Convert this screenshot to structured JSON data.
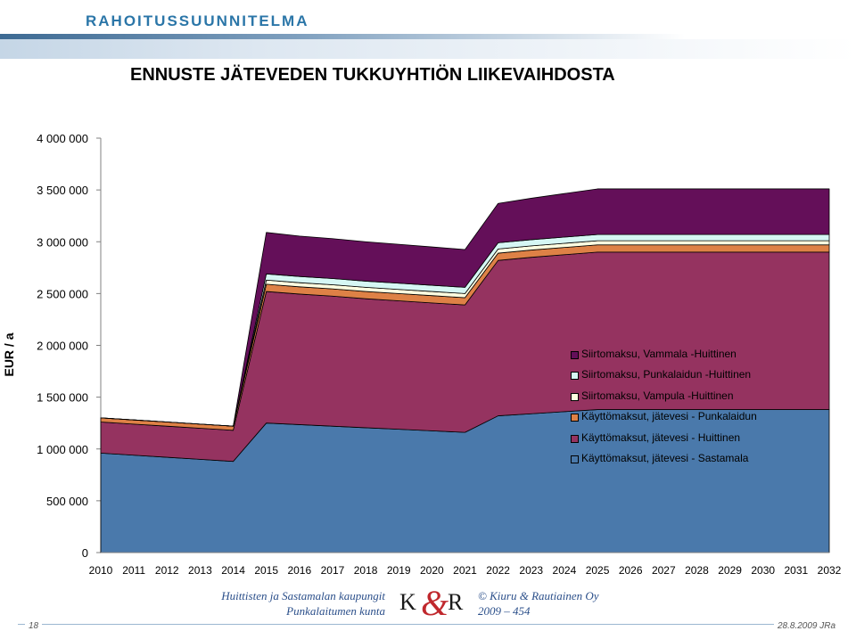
{
  "header": {
    "title": "RAHOITUSSUUNNITELMA"
  },
  "chart_data": {
    "type": "area",
    "stacked": true,
    "title": "ENNUSTE JÄTEVEDEN TUKKUYHTIÖN LIIKEVAIHDOSTA",
    "ylabel": "EUR / a",
    "xlabel": "",
    "ylim": [
      0,
      4000000
    ],
    "yticks": [
      0,
      500000,
      1000000,
      1500000,
      2000000,
      2500000,
      3000000,
      3500000,
      4000000
    ],
    "ytick_labels": [
      "0",
      "500 000",
      "1 000 000",
      "1 500 000",
      "2 000 000",
      "2 500 000",
      "3 000 000",
      "3 500 000",
      "4 000 000"
    ],
    "categories": [
      "2010",
      "2011",
      "2012",
      "2013",
      "2014",
      "2015",
      "2016",
      "2017",
      "2018",
      "2019",
      "2020",
      "2021",
      "2022",
      "2023",
      "2024",
      "2025",
      "2026",
      "2027",
      "2028",
      "2029",
      "2030",
      "2031",
      "2032"
    ],
    "legend_position": "right",
    "series": [
      {
        "name": "Käyttömaksut, jätevesi - Sastamala",
        "color": "#4a79ab",
        "values": [
          960000,
          940000,
          920000,
          900000,
          880000,
          1250000,
          1235000,
          1220000,
          1205000,
          1190000,
          1175000,
          1160000,
          1320000,
          1340000,
          1360000,
          1380000,
          1380000,
          1380000,
          1380000,
          1380000,
          1380000,
          1380000,
          1380000
        ]
      },
      {
        "name": "Käyttömaksut, jätevesi - Huittinen",
        "color": "#953360",
        "values": [
          300000,
          300000,
          300000,
          300000,
          300000,
          1270000,
          1260000,
          1255000,
          1245000,
          1240000,
          1235000,
          1230000,
          1500000,
          1510000,
          1515000,
          1520000,
          1520000,
          1520000,
          1520000,
          1520000,
          1520000,
          1520000,
          1520000
        ]
      },
      {
        "name": "Käyttömaksut, jätevesi - Punkalaidun",
        "color": "#de8146",
        "values": [
          40000,
          40000,
          40000,
          40000,
          40000,
          70000,
          70000,
          70000,
          70000,
          70000,
          70000,
          70000,
          70000,
          70000,
          70000,
          70000,
          70000,
          70000,
          70000,
          70000,
          70000,
          70000,
          70000
        ]
      },
      {
        "name": "Siirtomaksu, Vampula -Huittinen",
        "color": "#fffde0",
        "values": [
          0,
          0,
          0,
          0,
          0,
          40000,
          40000,
          40000,
          40000,
          40000,
          40000,
          40000,
          40000,
          40000,
          40000,
          40000,
          40000,
          40000,
          40000,
          40000,
          40000,
          40000,
          40000
        ]
      },
      {
        "name": "Siirtomaksu, Punkalaidun -Huittinen",
        "color": "#d6f7f4",
        "values": [
          0,
          0,
          0,
          0,
          0,
          60000,
          60000,
          60000,
          60000,
          60000,
          60000,
          60000,
          60000,
          60000,
          60000,
          60000,
          60000,
          60000,
          60000,
          60000,
          60000,
          60000,
          60000
        ]
      },
      {
        "name": "Siirtomaksu, Vammala -Huittinen",
        "color": "#640f59",
        "values": [
          0,
          0,
          0,
          0,
          0,
          400000,
          390000,
          385000,
          380000,
          375000,
          370000,
          365000,
          380000,
          400000,
          420000,
          440000,
          440000,
          440000,
          440000,
          440000,
          440000,
          440000,
          440000
        ]
      }
    ]
  },
  "footer": {
    "left_line1": "Huittisten ja Sastamalan kaupungit",
    "left_line2": "Punkalaitumen kunta",
    "logo_k": "K",
    "logo_amp": "&",
    "logo_r": "R",
    "right_line1": "© Kiuru & Rautiainen Oy",
    "right_line2": "2009 – 454",
    "page_number": "18",
    "date": "28.8.2009 JRa"
  }
}
